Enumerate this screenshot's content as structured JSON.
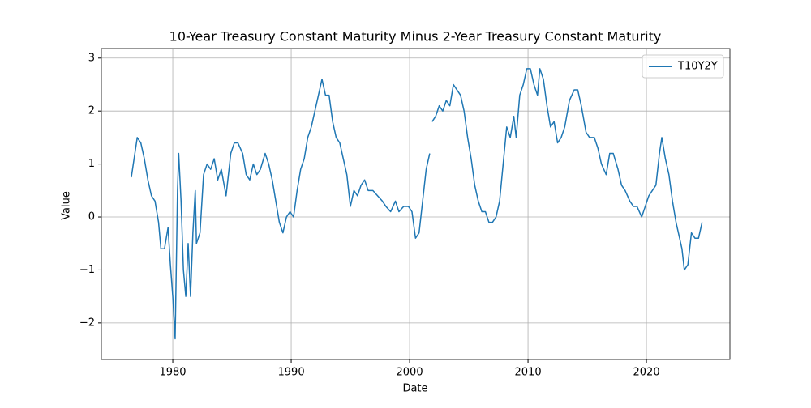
{
  "chart_data": {
    "type": "line",
    "title": "10-Year Treasury Constant Maturity Minus 2-Year Treasury Constant Maturity",
    "xlabel": "Date",
    "ylabel": "Value",
    "x": [
      1976.5,
      1976.8,
      1977.0,
      1977.3,
      1977.6,
      1977.9,
      1978.2,
      1978.5,
      1978.8,
      1979.0,
      1979.3,
      1979.6,
      1979.8,
      1980.0,
      1980.2,
      1980.4,
      1980.5,
      1980.7,
      1980.9,
      1981.1,
      1981.3,
      1981.5,
      1981.7,
      1981.9,
      1982.0,
      1982.3,
      1982.6,
      1982.9,
      1983.2,
      1983.5,
      1983.8,
      1984.1,
      1984.5,
      1984.9,
      1985.2,
      1985.5,
      1985.9,
      1986.2,
      1986.5,
      1986.8,
      1987.1,
      1987.4,
      1987.8,
      1988.1,
      1988.4,
      1988.7,
      1989.0,
      1989.3,
      1989.6,
      1989.9,
      1990.2,
      1990.5,
      1990.8,
      1991.1,
      1991.4,
      1991.7,
      1992.0,
      1992.3,
      1992.6,
      1992.9,
      1993.2,
      1993.5,
      1993.8,
      1994.1,
      1994.4,
      1994.7,
      1995.0,
      1995.3,
      1995.6,
      1995.9,
      1996.2,
      1996.5,
      1996.9,
      1997.3,
      1997.7,
      1998.0,
      1998.4,
      1998.8,
      1999.1,
      1999.5,
      1999.9,
      2000.2,
      2000.5,
      2000.8,
      2001.1,
      2001.4,
      2001.7,
      2001.8,
      2001.9,
      2002.2,
      2002.5,
      2002.8,
      2003.1,
      2003.4,
      2003.7,
      2004.0,
      2004.3,
      2004.6,
      2004.9,
      2005.2,
      2005.5,
      2005.8,
      2006.1,
      2006.4,
      2006.7,
      2007.0,
      2007.3,
      2007.6,
      2007.9,
      2008.2,
      2008.5,
      2008.8,
      2009.0,
      2009.3,
      2009.6,
      2009.9,
      2010.2,
      2010.5,
      2010.8,
      2011.0,
      2011.3,
      2011.6,
      2011.9,
      2012.2,
      2012.5,
      2012.8,
      2013.1,
      2013.5,
      2013.9,
      2014.2,
      2014.5,
      2014.9,
      2015.2,
      2015.6,
      2015.9,
      2016.2,
      2016.6,
      2016.9,
      2017.2,
      2017.6,
      2017.9,
      2018.2,
      2018.6,
      2018.9,
      2019.2,
      2019.6,
      2019.9,
      2020.2,
      2020.5,
      2020.8,
      2021.1,
      2021.3,
      2021.6,
      2021.9,
      2022.2,
      2022.5,
      2022.8,
      2023.0,
      2023.2,
      2023.5,
      2023.8,
      2024.1,
      2024.4,
      2024.7
    ],
    "series": [
      {
        "name": "T10Y2Y",
        "color": "#1f77b4",
        "values": [
          0.75,
          1.2,
          1.5,
          1.4,
          1.1,
          0.7,
          0.4,
          0.3,
          -0.1,
          -0.6,
          -0.6,
          -0.2,
          -0.9,
          -1.5,
          -2.3,
          0.5,
          1.2,
          0.3,
          -1.0,
          -1.5,
          -0.5,
          -1.5,
          -0.3,
          0.5,
          -0.5,
          -0.3,
          0.8,
          1.0,
          0.9,
          1.1,
          0.7,
          0.9,
          0.4,
          1.2,
          1.4,
          1.4,
          1.2,
          0.8,
          0.7,
          1.0,
          0.8,
          0.9,
          1.2,
          1.0,
          0.7,
          0.3,
          -0.1,
          -0.3,
          0.0,
          0.1,
          0.0,
          0.5,
          0.9,
          1.1,
          1.5,
          1.7,
          2.0,
          2.3,
          2.6,
          2.3,
          2.3,
          1.8,
          1.5,
          1.4,
          1.1,
          0.8,
          0.2,
          0.5,
          0.4,
          0.6,
          0.7,
          0.5,
          0.5,
          0.4,
          0.3,
          0.2,
          0.1,
          0.3,
          0.1,
          0.2,
          0.2,
          0.1,
          -0.4,
          -0.3,
          0.3,
          0.9,
          1.2,
          null,
          1.8,
          1.9,
          2.1,
          2.0,
          2.2,
          2.1,
          2.5,
          2.4,
          2.3,
          2.0,
          1.5,
          1.1,
          0.6,
          0.3,
          0.1,
          0.1,
          -0.1,
          -0.1,
          0.0,
          0.3,
          1.0,
          1.7,
          1.5,
          1.9,
          1.5,
          2.3,
          2.5,
          2.8,
          2.8,
          2.5,
          2.3,
          2.8,
          2.6,
          2.1,
          1.7,
          1.8,
          1.4,
          1.5,
          1.7,
          2.2,
          2.4,
          2.4,
          2.1,
          1.6,
          1.5,
          1.5,
          1.3,
          1.0,
          0.8,
          1.2,
          1.2,
          0.9,
          0.6,
          0.5,
          0.3,
          0.2,
          0.2,
          0.0,
          0.2,
          0.4,
          0.5,
          0.6,
          1.2,
          1.5,
          1.1,
          0.8,
          0.3,
          -0.1,
          -0.4,
          -0.6,
          -1.0,
          -0.9,
          -0.3,
          -0.4,
          -0.4,
          -0.1
        ]
      }
    ],
    "xlim": [
      1973.97,
      2027.05
    ],
    "xticks": [
      1980,
      1990,
      2000,
      2010,
      2020
    ],
    "ylim": [
      -2.69,
      3.18
    ],
    "yticks": [
      {
        "value": -2,
        "label": "−2"
      },
      {
        "value": -1,
        "label": "−1"
      },
      0,
      1,
      2,
      3
    ],
    "grid": true,
    "legend": "upper right"
  }
}
